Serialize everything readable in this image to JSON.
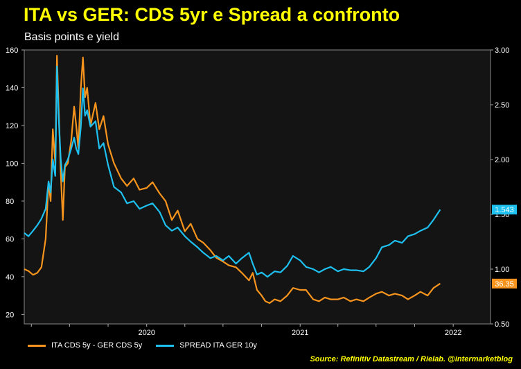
{
  "chart_data": {
    "type": "line",
    "title": "ITA vs GER: CDS 5yr e Spread a confronto",
    "subtitle": "Basis points e yield",
    "x_ticks": [
      "2020",
      "2021",
      "2022"
    ],
    "x_range": [
      "2019-03-15",
      "2022-03-31"
    ],
    "y_left": {
      "range": [
        15,
        160
      ],
      "ticks": [
        "20",
        "40",
        "60",
        "80",
        "100",
        "120",
        "140",
        "160"
      ]
    },
    "y_right": {
      "range": [
        0.5,
        3.0
      ],
      "ticks": [
        "0.50",
        "1.00",
        "1.50",
        "2.00",
        "2.50",
        "3.00"
      ]
    },
    "series": [
      {
        "name": "ITA CDS 5y - GER CDS 5y",
        "axis": "left",
        "color": "#f7941d",
        "last_label": "36.35",
        "points": [
          [
            "2019-03-15",
            44
          ],
          [
            "2019-03-25",
            43
          ],
          [
            "2019-04-05",
            41
          ],
          [
            "2019-04-15",
            42
          ],
          [
            "2019-04-25",
            45
          ],
          [
            "2019-05-05",
            60
          ],
          [
            "2019-05-12",
            90
          ],
          [
            "2019-05-17",
            80
          ],
          [
            "2019-05-22",
            118
          ],
          [
            "2019-05-28",
            100
          ],
          [
            "2019-06-01",
            157
          ],
          [
            "2019-06-05",
            130
          ],
          [
            "2019-06-10",
            95
          ],
          [
            "2019-06-15",
            70
          ],
          [
            "2019-06-20",
            98
          ],
          [
            "2019-06-27",
            100
          ],
          [
            "2019-07-05",
            112
          ],
          [
            "2019-07-12",
            130
          ],
          [
            "2019-07-17",
            120
          ],
          [
            "2019-07-22",
            108
          ],
          [
            "2019-07-28",
            140
          ],
          [
            "2019-08-02",
            156
          ],
          [
            "2019-08-07",
            135
          ],
          [
            "2019-08-12",
            140
          ],
          [
            "2019-08-20",
            120
          ],
          [
            "2019-09-01",
            132
          ],
          [
            "2019-09-10",
            118
          ],
          [
            "2019-09-20",
            125
          ],
          [
            "2019-10-01",
            110
          ],
          [
            "2019-10-15",
            100
          ],
          [
            "2019-11-01",
            92
          ],
          [
            "2019-11-15",
            88
          ],
          [
            "2019-12-01",
            92
          ],
          [
            "2019-12-15",
            86
          ],
          [
            "2020-01-01",
            87
          ],
          [
            "2020-01-15",
            90
          ],
          [
            "2020-02-01",
            84
          ],
          [
            "2020-02-15",
            80
          ],
          [
            "2020-03-01",
            70
          ],
          [
            "2020-03-15",
            75
          ],
          [
            "2020-04-01",
            64
          ],
          [
            "2020-04-15",
            68
          ],
          [
            "2020-05-01",
            60
          ],
          [
            "2020-05-15",
            58
          ],
          [
            "2020-06-01",
            54
          ],
          [
            "2020-06-15",
            50
          ],
          [
            "2020-07-01",
            48
          ],
          [
            "2020-07-15",
            46
          ],
          [
            "2020-08-01",
            45
          ],
          [
            "2020-08-15",
            42
          ],
          [
            "2020-09-01",
            38
          ],
          [
            "2020-09-10",
            42
          ],
          [
            "2020-09-20",
            33
          ],
          [
            "2020-10-01",
            30
          ],
          [
            "2020-10-10",
            27
          ],
          [
            "2020-10-20",
            26
          ],
          [
            "2020-11-01",
            28
          ],
          [
            "2020-11-15",
            27
          ],
          [
            "2020-12-01",
            30
          ],
          [
            "2020-12-15",
            34
          ],
          [
            "2021-01-01",
            33
          ],
          [
            "2021-01-15",
            33
          ],
          [
            "2021-02-01",
            28
          ],
          [
            "2021-02-15",
            27
          ],
          [
            "2021-03-01",
            29
          ],
          [
            "2021-03-15",
            28
          ],
          [
            "2021-04-01",
            28
          ],
          [
            "2021-04-15",
            29
          ],
          [
            "2021-05-01",
            27
          ],
          [
            "2021-05-15",
            28
          ],
          [
            "2021-06-01",
            27
          ],
          [
            "2021-06-15",
            29
          ],
          [
            "2021-07-01",
            31
          ],
          [
            "2021-07-15",
            32
          ],
          [
            "2021-08-01",
            30
          ],
          [
            "2021-08-15",
            31
          ],
          [
            "2021-09-01",
            30
          ],
          [
            "2021-09-15",
            28
          ],
          [
            "2021-10-01",
            30
          ],
          [
            "2021-10-15",
            32
          ],
          [
            "2021-11-01",
            30
          ],
          [
            "2021-11-15",
            34
          ],
          [
            "2021-12-01",
            36.35
          ]
        ]
      },
      {
        "name": "SPREAD ITA GER 10y",
        "axis": "right",
        "color": "#1ec0f0",
        "last_label": "1.543",
        "points": [
          [
            "2019-03-15",
            1.33
          ],
          [
            "2019-03-25",
            1.3
          ],
          [
            "2019-04-05",
            1.35
          ],
          [
            "2019-04-15",
            1.4
          ],
          [
            "2019-04-25",
            1.46
          ],
          [
            "2019-05-05",
            1.55
          ],
          [
            "2019-05-12",
            1.8
          ],
          [
            "2019-05-17",
            1.7
          ],
          [
            "2019-05-22",
            2.0
          ],
          [
            "2019-05-28",
            1.85
          ],
          [
            "2019-06-01",
            2.85
          ],
          [
            "2019-06-05",
            2.4
          ],
          [
            "2019-06-10",
            2.0
          ],
          [
            "2019-06-15",
            1.8
          ],
          [
            "2019-06-20",
            1.95
          ],
          [
            "2019-06-27",
            2.0
          ],
          [
            "2019-07-05",
            2.1
          ],
          [
            "2019-07-12",
            2.2
          ],
          [
            "2019-07-17",
            2.1
          ],
          [
            "2019-07-22",
            2.05
          ],
          [
            "2019-07-28",
            2.3
          ],
          [
            "2019-08-02",
            2.65
          ],
          [
            "2019-08-07",
            2.4
          ],
          [
            "2019-08-12",
            2.45
          ],
          [
            "2019-08-20",
            2.3
          ],
          [
            "2019-09-01",
            2.35
          ],
          [
            "2019-09-10",
            2.1
          ],
          [
            "2019-09-20",
            2.15
          ],
          [
            "2019-10-01",
            1.95
          ],
          [
            "2019-10-15",
            1.75
          ],
          [
            "2019-11-01",
            1.7
          ],
          [
            "2019-11-15",
            1.6
          ],
          [
            "2019-12-01",
            1.62
          ],
          [
            "2019-12-15",
            1.55
          ],
          [
            "2020-01-01",
            1.58
          ],
          [
            "2020-01-15",
            1.6
          ],
          [
            "2020-02-01",
            1.52
          ],
          [
            "2020-02-15",
            1.4
          ],
          [
            "2020-03-01",
            1.35
          ],
          [
            "2020-03-15",
            1.38
          ],
          [
            "2020-04-01",
            1.3
          ],
          [
            "2020-04-15",
            1.25
          ],
          [
            "2020-05-01",
            1.2
          ],
          [
            "2020-05-15",
            1.15
          ],
          [
            "2020-06-01",
            1.1
          ],
          [
            "2020-06-15",
            1.12
          ],
          [
            "2020-07-01",
            1.08
          ],
          [
            "2020-07-15",
            1.12
          ],
          [
            "2020-08-01",
            1.05
          ],
          [
            "2020-08-15",
            1.1
          ],
          [
            "2020-09-01",
            1.15
          ],
          [
            "2020-09-10",
            1.05
          ],
          [
            "2020-09-20",
            0.95
          ],
          [
            "2020-10-01",
            0.97
          ],
          [
            "2020-10-15",
            0.93
          ],
          [
            "2020-11-01",
            0.98
          ],
          [
            "2020-11-15",
            0.97
          ],
          [
            "2020-12-01",
            1.03
          ],
          [
            "2020-12-15",
            1.12
          ],
          [
            "2021-01-01",
            1.08
          ],
          [
            "2021-01-15",
            1.02
          ],
          [
            "2021-02-01",
            1.0
          ],
          [
            "2021-02-15",
            0.97
          ],
          [
            "2021-03-01",
            1.0
          ],
          [
            "2021-03-15",
            1.02
          ],
          [
            "2021-04-01",
            0.98
          ],
          [
            "2021-04-15",
            1.0
          ],
          [
            "2021-05-01",
            0.99
          ],
          [
            "2021-05-15",
            0.99
          ],
          [
            "2021-06-01",
            0.98
          ],
          [
            "2021-06-15",
            1.02
          ],
          [
            "2021-07-01",
            1.1
          ],
          [
            "2021-07-15",
            1.2
          ],
          [
            "2021-08-01",
            1.22
          ],
          [
            "2021-08-15",
            1.26
          ],
          [
            "2021-09-01",
            1.24
          ],
          [
            "2021-09-15",
            1.3
          ],
          [
            "2021-10-01",
            1.32
          ],
          [
            "2021-10-15",
            1.35
          ],
          [
            "2021-11-01",
            1.38
          ],
          [
            "2021-11-15",
            1.45
          ],
          [
            "2021-12-01",
            1.543
          ]
        ]
      }
    ],
    "grid": false,
    "legend_position": "bottom-left"
  },
  "source": "Source: Refinitiv Datastream / Rielab. @intermarketblog",
  "colors": {
    "background": "#000000",
    "plot_background": "#141414",
    "title": "#ffff00",
    "text": "#ffffff",
    "axis": "#aaaaaa"
  }
}
